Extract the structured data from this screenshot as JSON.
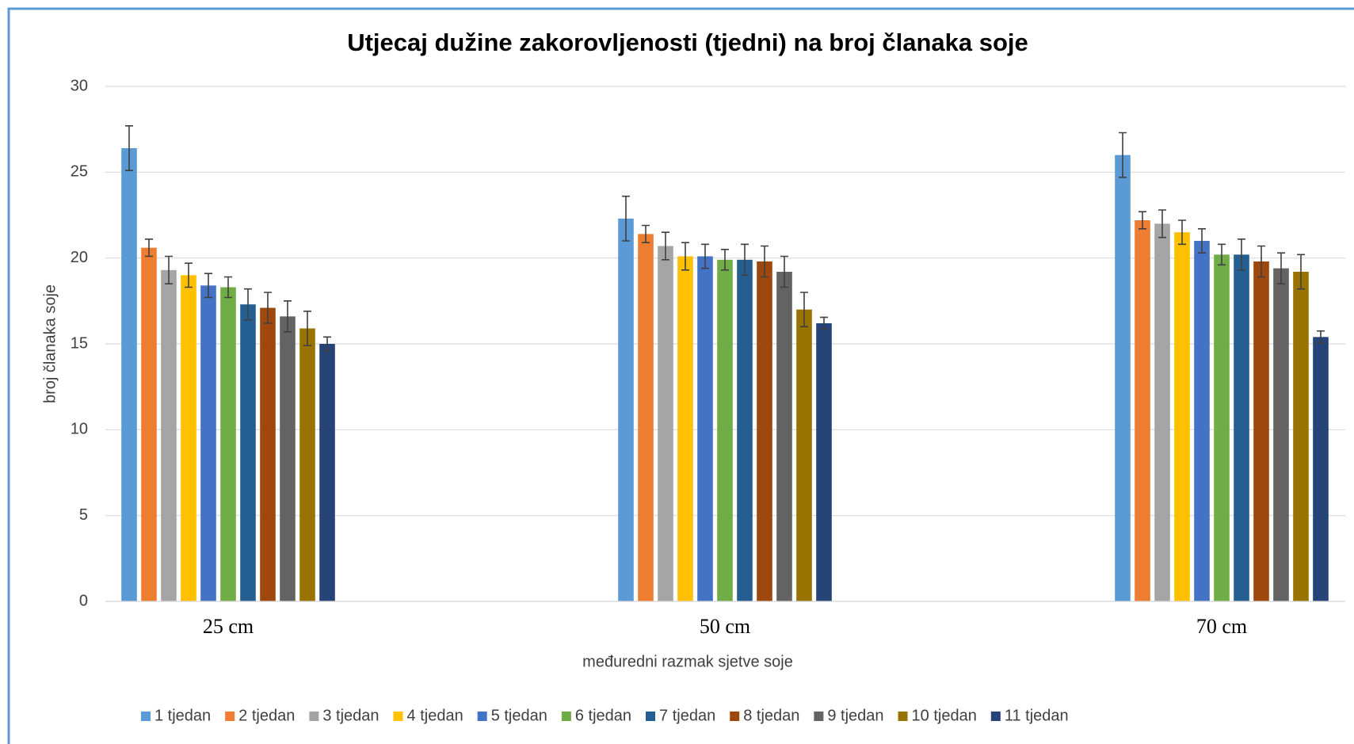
{
  "chart_data": {
    "type": "bar",
    "title": "Utjecaj dužine zakorovljenosti  (tjedni) na broj članaka soje",
    "x_label": "međuredni razmak sjetve soje",
    "y_label": "broj članaka soje",
    "categories": [
      "25 cm",
      "50 cm",
      "70 cm"
    ],
    "ylim": [
      0,
      30
    ],
    "yticks": [
      0,
      5,
      10,
      15,
      20,
      25,
      30
    ],
    "grid": true,
    "legend": "bottom",
    "series": [
      {
        "name": "1 tjedan",
        "color": "#5b9bd5",
        "values": [
          26.4,
          22.3,
          26.0
        ],
        "errors": [
          1.3,
          1.3,
          1.3
        ]
      },
      {
        "name": "2 tjedan",
        "color": "#ed7d31",
        "values": [
          20.6,
          21.4,
          22.2
        ],
        "errors": [
          0.5,
          0.5,
          0.5
        ]
      },
      {
        "name": "3 tjedan",
        "color": "#a5a5a5",
        "values": [
          19.3,
          20.7,
          22.0
        ],
        "errors": [
          0.8,
          0.8,
          0.8
        ]
      },
      {
        "name": "4 tjedan",
        "color": "#ffc000",
        "values": [
          19.0,
          20.1,
          21.5
        ],
        "errors": [
          0.7,
          0.8,
          0.7
        ]
      },
      {
        "name": "5 tjedan",
        "color": "#4472c4",
        "values": [
          18.4,
          20.1,
          21.0
        ],
        "errors": [
          0.7,
          0.7,
          0.7
        ]
      },
      {
        "name": "6 tjedan",
        "color": "#70ad47",
        "values": [
          18.3,
          19.9,
          20.2
        ],
        "errors": [
          0.6,
          0.6,
          0.6
        ]
      },
      {
        "name": "7 tjedan",
        "color": "#255e91",
        "values": [
          17.3,
          19.9,
          20.2
        ],
        "errors": [
          0.9,
          0.9,
          0.9
        ]
      },
      {
        "name": "8 tjedan",
        "color": "#9e480e",
        "values": [
          17.1,
          19.8,
          19.8
        ],
        "errors": [
          0.9,
          0.9,
          0.9
        ]
      },
      {
        "name": "9 tjedan",
        "color": "#636363",
        "values": [
          16.6,
          19.2,
          19.4
        ],
        "errors": [
          0.9,
          0.9,
          0.9
        ]
      },
      {
        "name": "10 tjedan",
        "color": "#997300",
        "values": [
          15.9,
          17.0,
          19.2
        ],
        "errors": [
          1.0,
          1.0,
          1.0
        ]
      },
      {
        "name": "11 tjedan",
        "color": "#264478",
        "values": [
          15.0,
          16.2,
          15.4
        ],
        "errors": [
          0.4,
          0.35,
          0.35
        ]
      }
    ]
  }
}
